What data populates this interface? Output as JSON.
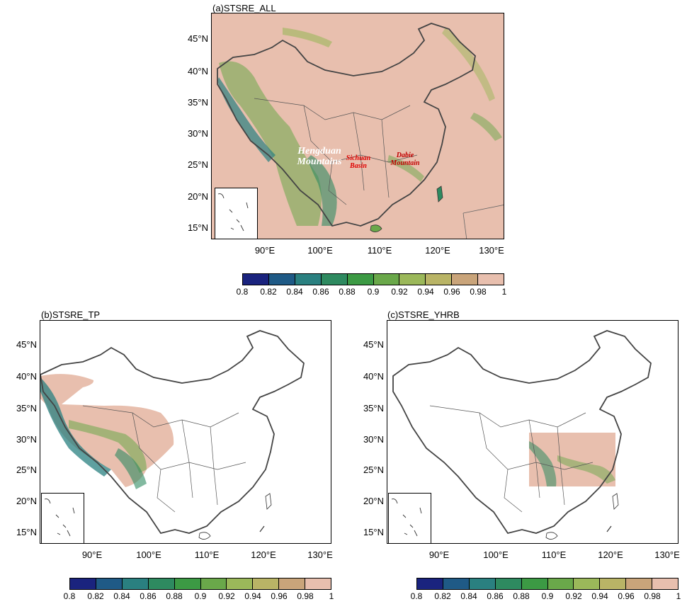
{
  "panels": [
    {
      "id": "a",
      "title": "(a)STSRE_ALL"
    },
    {
      "id": "b",
      "title": "(b)STSRE_TP"
    },
    {
      "id": "c",
      "title": "(c)STSRE_YHRB"
    }
  ],
  "lat_labels": [
    "45°N",
    "40°N",
    "35°N",
    "30°N",
    "25°N",
    "20°N",
    "15°N"
  ],
  "lon_labels": [
    "90°E",
    "100°E",
    "110°E",
    "120°E",
    "130°E"
  ],
  "region_labels": {
    "hengduan": "Hengduan Mountains",
    "sichuan": "Sichuan Basin",
    "dabie": "Dabie Mountain"
  },
  "colorbar": {
    "ticks": [
      "0.8",
      "0.82",
      "0.84",
      "0.86",
      "0.88",
      "0.9",
      "0.92",
      "0.94",
      "0.96",
      "0.98",
      "1"
    ],
    "colors": [
      "#1a237e",
      "#1f5a86",
      "#2a8080",
      "#2e8a60",
      "#3c9a44",
      "#6aa84a",
      "#9bb85a",
      "#b9b466",
      "#c9a47a",
      "#e8bfae"
    ]
  }
}
